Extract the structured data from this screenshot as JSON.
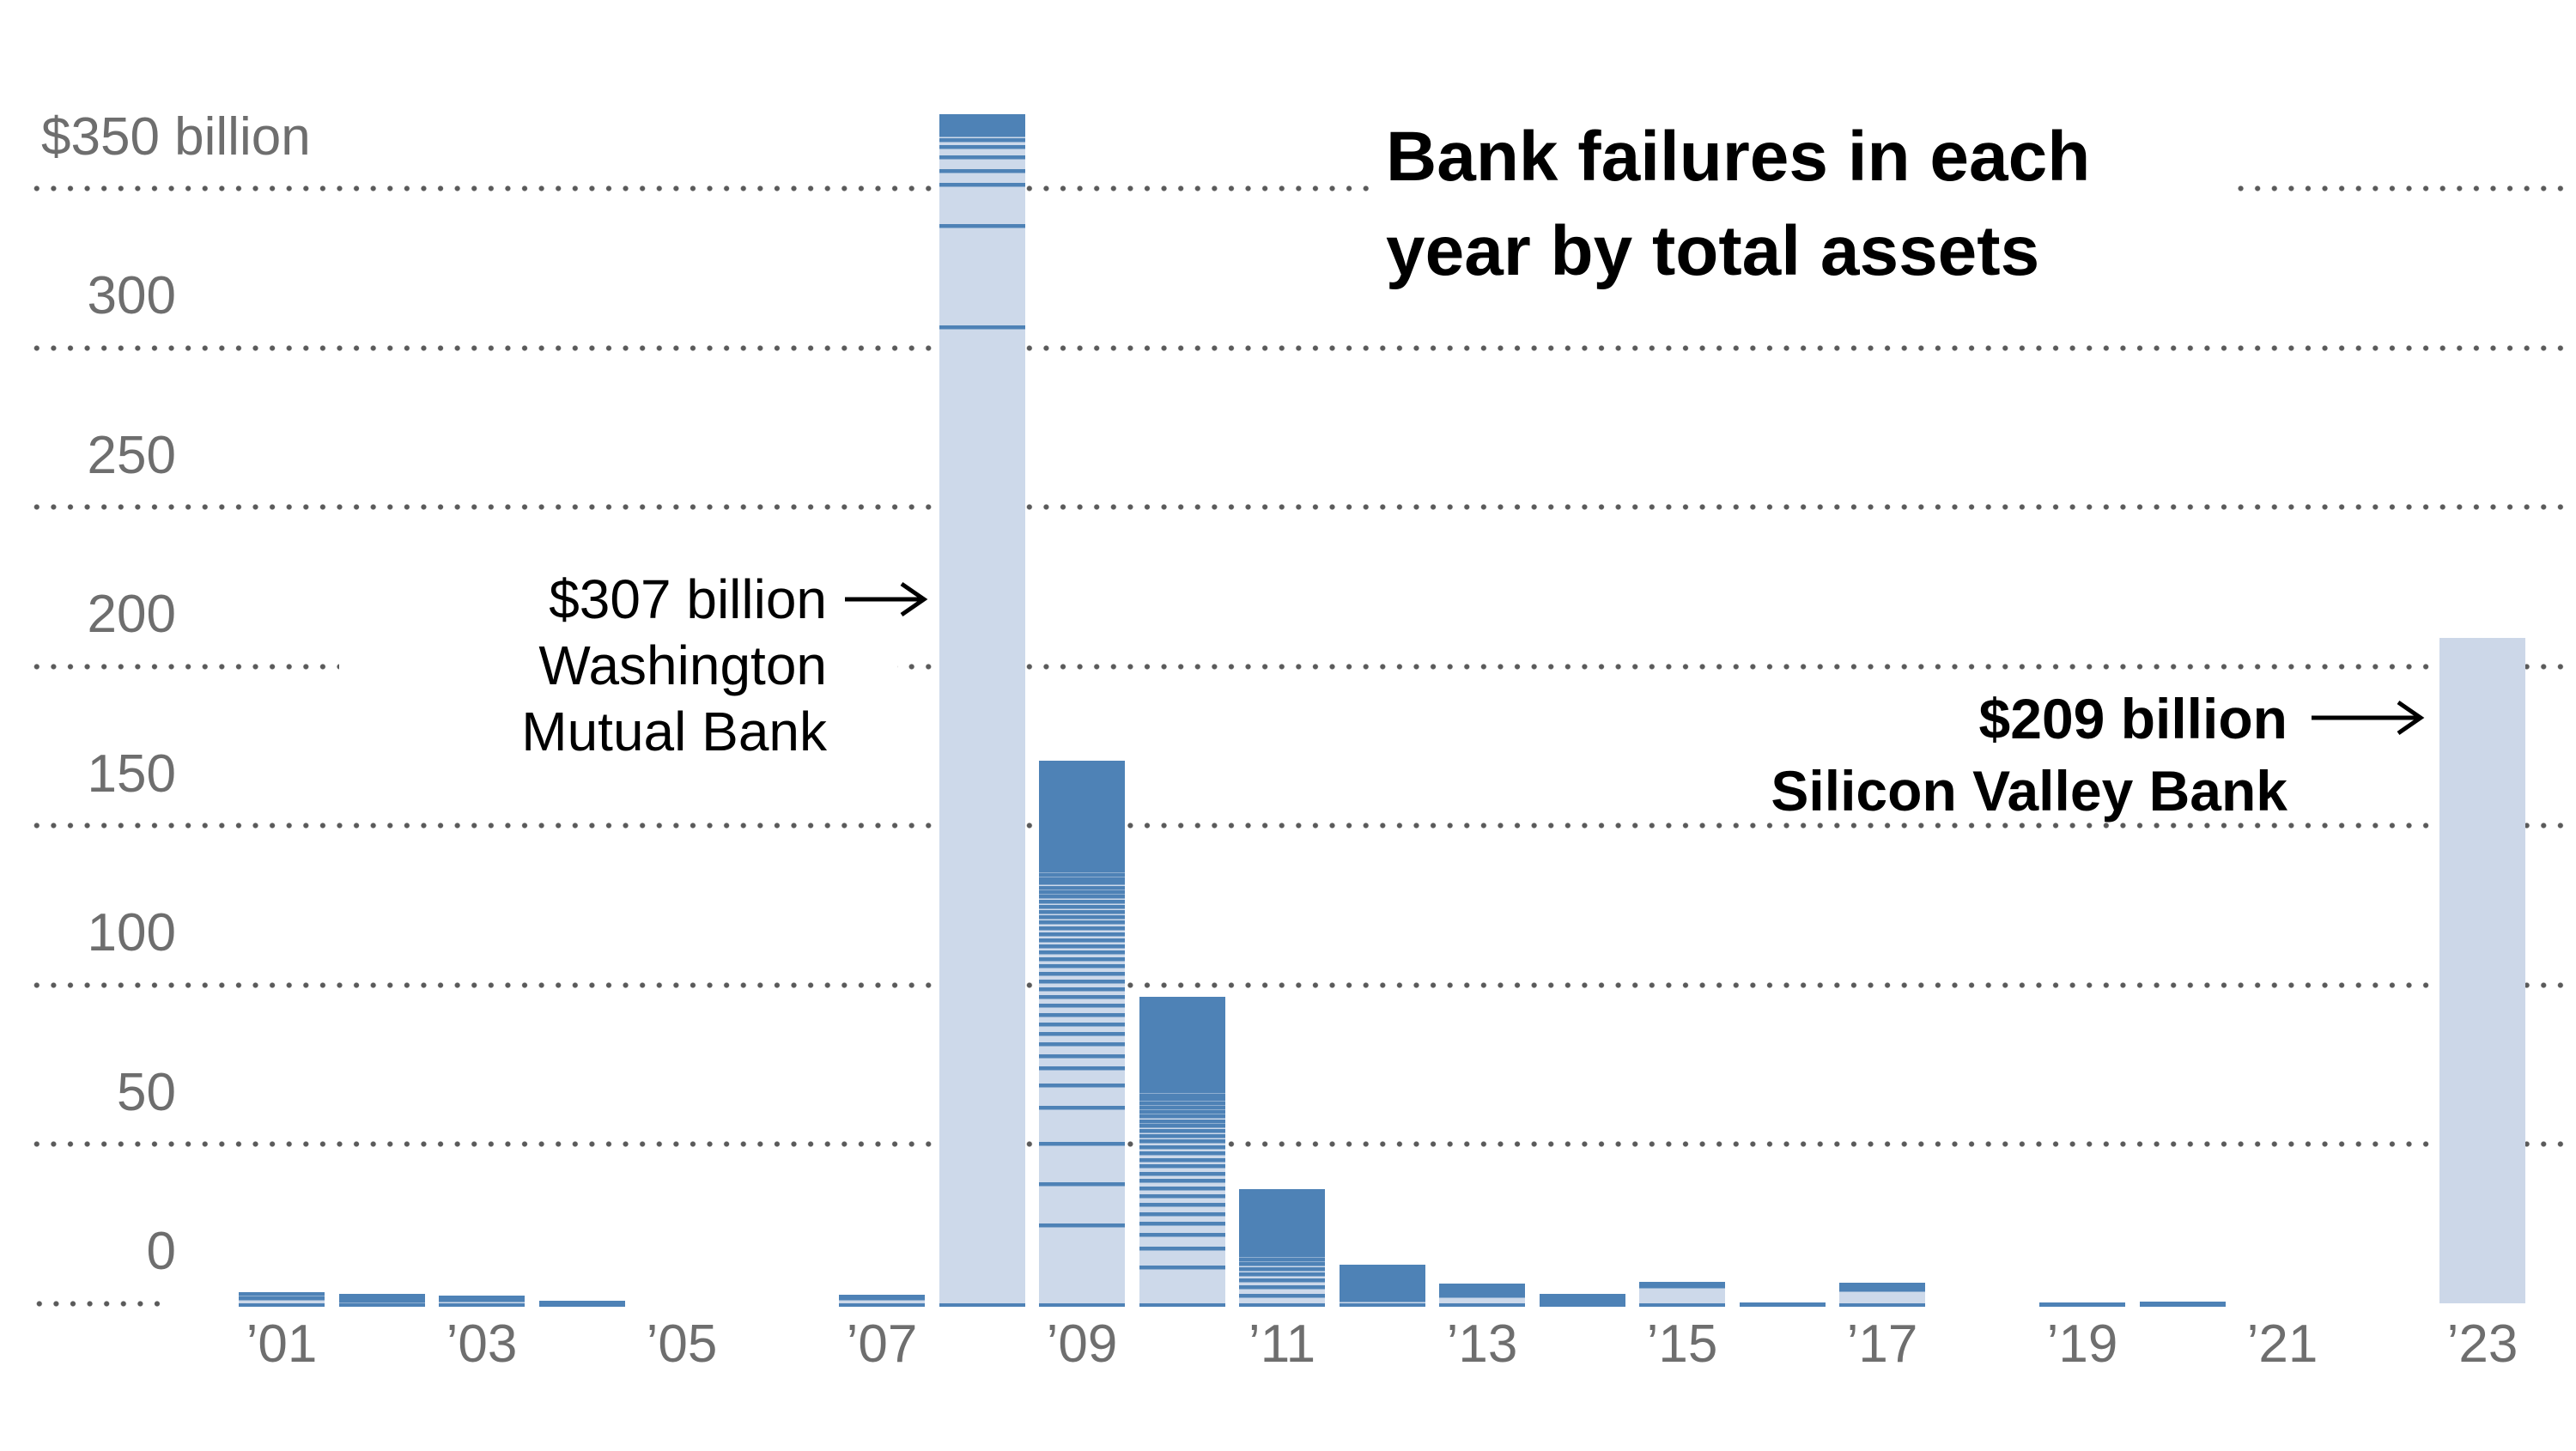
{
  "title": {
    "line1": "Bank failures in each",
    "line2": "year by total assets"
  },
  "annotations": {
    "wamu": {
      "line1": "$307 billion",
      "line2": "Washington",
      "line3": "Mutual Bank",
      "value_billions": 307,
      "points_to_year": 2008,
      "style": "regular"
    },
    "svb": {
      "line1": "$209 billion",
      "line2": "Silicon Valley Bank",
      "value_billions": 209,
      "points_to_year": 2023,
      "style": "bold"
    }
  },
  "y_axis": {
    "unit_label": "$350 billion",
    "ticks": [
      {
        "value": 350,
        "label": "$350 billion",
        "top_tick": true
      },
      {
        "value": 300,
        "label": "300"
      },
      {
        "value": 250,
        "label": "250"
      },
      {
        "value": 200,
        "label": "200"
      },
      {
        "value": 150,
        "label": "150"
      },
      {
        "value": 100,
        "label": "100"
      },
      {
        "value": 50,
        "label": "50"
      },
      {
        "value": 0,
        "label": "0",
        "short_line": true
      }
    ]
  },
  "x_axis": {
    "labels": [
      {
        "year": 2001,
        "text": "’01"
      },
      {
        "year": 2003,
        "text": "’03"
      },
      {
        "year": 2005,
        "text": "’05"
      },
      {
        "year": 2007,
        "text": "’07"
      },
      {
        "year": 2009,
        "text": "’09"
      },
      {
        "year": 2011,
        "text": "’11"
      },
      {
        "year": 2013,
        "text": "’13"
      },
      {
        "year": 2015,
        "text": "’15"
      },
      {
        "year": 2017,
        "text": "’17"
      },
      {
        "year": 2019,
        "text": "’19"
      },
      {
        "year": 2021,
        "text": "’21"
      },
      {
        "year": 2023,
        "text": "’23"
      }
    ]
  },
  "colors": {
    "segment_light": "#cdd9ea",
    "segment_dark": "#4e82b6",
    "svb_bar": "#ccd7e8",
    "grid_dot": "#5a5a5a",
    "axis_text": "#6e6e6e",
    "annotation_text": "#000000",
    "background": "#ffffff"
  },
  "chart_data": {
    "type": "bar",
    "stacked": true,
    "title": "Bank failures in each year by total assets",
    "unit": "USD billions of assets",
    "ylim": [
      0,
      350
    ],
    "yticks": [
      0,
      50,
      100,
      150,
      200,
      250,
      300,
      350
    ],
    "grid": "dotted horizontal",
    "legend": "none",
    "categories": [
      2001,
      2002,
      2003,
      2004,
      2005,
      2006,
      2007,
      2008,
      2009,
      2010,
      2011,
      2012,
      2013,
      2014,
      2015,
      2016,
      2017,
      2018,
      2019,
      2020,
      2021,
      2022,
      2023
    ],
    "totals": [
      3.4,
      2.9,
      2.3,
      0.7,
      0,
      0,
      2.6,
      373.6,
      170.6,
      96.5,
      36.0,
      12.1,
      6.1,
      3.1,
      6.7,
      0.32,
      6.5,
      0,
      0.21,
      0.45,
      0,
      0,
      209
    ],
    "notable_segments": {
      "2008_bottom": {
        "name": "Washington Mutual Bank",
        "value": 307
      },
      "2023": {
        "name": "Silicon Valley Bank",
        "value": 209
      }
    },
    "years": [
      {
        "year": 2001,
        "total": 3.4,
        "segments": [
          2.2,
          1.2
        ]
      },
      {
        "year": 2002,
        "total": 2.9,
        "segments": [
          1.3,
          0.9,
          0.7
        ]
      },
      {
        "year": 2003,
        "total": 2.3,
        "segments": [
          1.5,
          0.8
        ]
      },
      {
        "year": 2004,
        "total": 0.7,
        "segments": [
          0.4,
          0.3
        ]
      },
      {
        "year": 2005,
        "total": 0,
        "segments": []
      },
      {
        "year": 2006,
        "total": 0,
        "segments": []
      },
      {
        "year": 2007,
        "total": 2.6,
        "segments": [
          2.2,
          0.4
        ]
      },
      {
        "year": 2008,
        "total": 373.6,
        "segments": [
          307,
          32,
          12.8,
          4.3,
          4.3,
          3.2,
          2.2,
          1.6,
          0.9,
          0.66,
          0.66,
          0.66,
          0.66,
          0.66,
          0.66,
          0.66,
          0.66
        ]
      },
      {
        "year": 2009,
        "total": 170.6,
        "segments": [
          25,
          13,
          12.7,
          11.2,
          7,
          5.4,
          4.0,
          3.6,
          3.3,
          3.1,
          2.9,
          2.8,
          2.7,
          2.6,
          2.5,
          2.4,
          2.3,
          2.2,
          2.1,
          2.0,
          1.9,
          1.9,
          1.8,
          1.8,
          1.7,
          1.7,
          1.6,
          1.6,
          1.5,
          1.5,
          1.4,
          1.4,
          1.3,
          1.3,
          1.2,
          1.2,
          1.1,
          1.1,
          1.0,
          1.0,
          0.8,
          0.8,
          0.8,
          0.8,
          0.8,
          0.8,
          0.8,
          0.8,
          0.8,
          0.8,
          0.8,
          0.8,
          0.8,
          0.8,
          0.8,
          0.8,
          0.8,
          0.8,
          0.8,
          0.8,
          0.8,
          0.8,
          0.8,
          0.8,
          0.8,
          0.8,
          0.8,
          0.8,
          0.8,
          0.8,
          0.8,
          0.8,
          0.8,
          0.8,
          0.8,
          0.8
        ]
      },
      {
        "year": 2010,
        "total": 96.5,
        "segments": [
          11.9,
          5.9,
          4.2,
          3.5,
          3.1,
          2.9,
          2.7,
          2.5,
          2.4,
          2.3,
          2.2,
          2.1,
          2.0,
          1.9,
          1.8,
          1.7,
          1.6,
          1.6,
          1.5,
          1.5,
          1.4,
          1.4,
          1.3,
          1.3,
          1.2,
          1.2,
          1.1,
          1.1,
          1.0,
          1.0,
          0.9,
          0.9,
          0.9,
          0.9,
          0.9,
          0.9,
          0.9,
          0.9,
          0.9,
          0.9,
          0.9,
          0.9,
          0.9,
          0.9,
          0.9,
          0.9,
          0.9,
          0.9,
          0.9,
          0.9,
          0.9,
          0.9,
          0.9,
          0.9,
          0.9,
          0.9,
          0.9,
          0.9
        ]
      },
      {
        "year": 2011,
        "total": 36.0,
        "segments": [
          3.0,
          2.6,
          2.2,
          1.9,
          1.7,
          1.5,
          1.4,
          1.3,
          1.2,
          1.1,
          1.0,
          1.0,
          0.9,
          0.9,
          0.65,
          0.65,
          0.65,
          0.65,
          0.65,
          0.65,
          0.65,
          0.65,
          0.65,
          0.65,
          0.65,
          0.65,
          0.65,
          0.65,
          0.65,
          0.65,
          0.65,
          0.65,
          0.65,
          0.65,
          0.65,
          0.65
        ]
      },
      {
        "year": 2012,
        "total": 12.1,
        "segments": [
          1.6,
          1.2,
          1.0,
          0.9,
          0.8,
          0.55,
          0.55,
          0.55,
          0.55,
          0.55,
          0.55,
          0.55,
          0.55,
          0.55,
          0.55,
          0.55,
          0.55
        ]
      },
      {
        "year": 2013,
        "total": 6.1,
        "segments": [
          3.1,
          0.7,
          0.5,
          0.3,
          0.3,
          0.3,
          0.3,
          0.3,
          0.3
        ]
      },
      {
        "year": 2014,
        "total": 3.1,
        "segments": [
          0.6,
          0.5,
          0.4,
          0.2,
          0.2,
          0.2,
          0.2,
          0.2,
          0.2,
          0.2,
          0.2
        ]
      },
      {
        "year": 2015,
        "total": 6.7,
        "segments": [
          5.9,
          0.35,
          0.25,
          0.2
        ]
      },
      {
        "year": 2016,
        "total": 0.32,
        "segments": [
          0.2,
          0.12
        ]
      },
      {
        "year": 2017,
        "total": 6.5,
        "segments": [
          4.9,
          0.7,
          0.4,
          0.3,
          0.2
        ]
      },
      {
        "year": 2018,
        "total": 0,
        "segments": []
      },
      {
        "year": 2019,
        "total": 0.21,
        "segments": [
          0.14,
          0.07
        ]
      },
      {
        "year": 2020,
        "total": 0.45,
        "segments": [
          0.3,
          0.15
        ]
      },
      {
        "year": 2021,
        "total": 0,
        "segments": []
      },
      {
        "year": 2022,
        "total": 0,
        "segments": []
      },
      {
        "year": 2023,
        "total": 209,
        "segments": [
          209
        ],
        "plain": true
      }
    ]
  }
}
